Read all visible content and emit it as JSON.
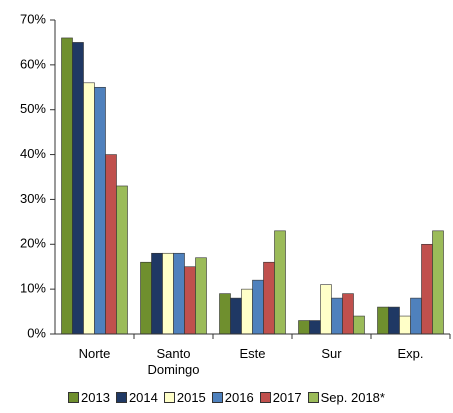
{
  "chart_data": {
    "type": "bar",
    "categories": [
      "Norte",
      "Santo Domingo",
      "Este",
      "Sur",
      "Exp."
    ],
    "series": [
      {
        "name": "2013",
        "color": "#6f8f2e",
        "values": [
          66,
          16,
          9,
          3,
          6
        ]
      },
      {
        "name": "2014",
        "color": "#1f3864",
        "values": [
          65,
          18,
          8,
          3,
          6
        ]
      },
      {
        "name": "2015",
        "color": "#ffffc8",
        "values": [
          56,
          18,
          10,
          11,
          4
        ]
      },
      {
        "name": "2016",
        "color": "#4f81bd",
        "values": [
          55,
          18,
          12,
          8,
          8
        ]
      },
      {
        "name": "2017",
        "color": "#c0504d",
        "values": [
          40,
          15,
          16,
          9,
          20
        ]
      },
      {
        "name": "Sep. 2018*",
        "color": "#9bbb59",
        "values": [
          33,
          17,
          23,
          4,
          23
        ]
      }
    ],
    "ylim": [
      0,
      70
    ],
    "yticks": [
      {
        "value": 0,
        "label": "0%"
      },
      {
        "value": 10,
        "label": "10%"
      },
      {
        "value": 20,
        "label": "20%"
      },
      {
        "value": 30,
        "label": "30%"
      },
      {
        "value": 40,
        "label": "40%"
      },
      {
        "value": 50,
        "label": "50%"
      },
      {
        "value": 60,
        "label": "60%"
      },
      {
        "value": 70,
        "label": "70%"
      }
    ],
    "grid": false
  }
}
